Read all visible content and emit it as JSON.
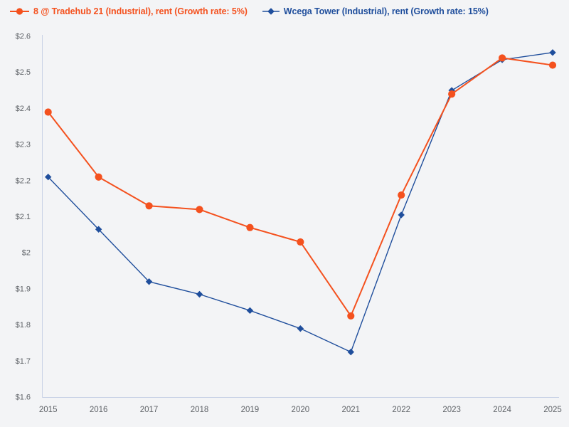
{
  "page": {
    "background": "#f3f4f6",
    "axis_color": "#c9d2e6",
    "tick_label_color": "#5f6368"
  },
  "legend": {
    "items": [
      {
        "label": "8 @ Tradehub 21 (Industrial), rent (Growth rate: 5%)",
        "color": "#f4511e",
        "marker": "circle"
      },
      {
        "label": "Wcega Tower (Industrial), rent (Growth rate: 15%)",
        "color": "#1f4e9c",
        "marker": "diamond"
      }
    ]
  },
  "chart_data": {
    "type": "line",
    "title": "",
    "xlabel": "",
    "ylabel": "",
    "grid": false,
    "legend_position": "top-left",
    "x": [
      2015,
      2016,
      2017,
      2018,
      2019,
      2020,
      2021,
      2022,
      2023,
      2024,
      2025
    ],
    "x_tick_labels": [
      "2015",
      "2016",
      "2017",
      "2018",
      "2019",
      "2020",
      "2021",
      "2022",
      "2023",
      "2024",
      "2025"
    ],
    "ylim": [
      1.6,
      2.6
    ],
    "y_ticks": [
      {
        "value": 1.6,
        "label": "$1.6"
      },
      {
        "value": 1.7,
        "label": "$1.7"
      },
      {
        "value": 1.8,
        "label": "$1.8"
      },
      {
        "value": 1.9,
        "label": "$1.9"
      },
      {
        "value": 2.0,
        "label": "$2"
      },
      {
        "value": 2.1,
        "label": "$2.1"
      },
      {
        "value": 2.2,
        "label": "$2.2"
      },
      {
        "value": 2.3,
        "label": "$2.3"
      },
      {
        "value": 2.4,
        "label": "$2.4"
      },
      {
        "value": 2.5,
        "label": "$2.5"
      },
      {
        "value": 2.6,
        "label": "$2.6"
      }
    ],
    "series": [
      {
        "name": "8 @ Tradehub 21 (Industrial), rent (Growth rate: 5%)",
        "color": "#f4511e",
        "marker": "circle",
        "values": [
          2.39,
          2.21,
          2.13,
          2.12,
          2.07,
          2.03,
          1.825,
          2.16,
          2.44,
          2.54,
          2.52
        ]
      },
      {
        "name": "Wcega Tower (Industrial), rent (Growth rate: 15%)",
        "color": "#1f4e9c",
        "marker": "diamond",
        "values": [
          2.21,
          2.065,
          1.92,
          1.885,
          1.84,
          1.79,
          1.725,
          2.105,
          2.45,
          2.535,
          2.555
        ]
      }
    ]
  }
}
